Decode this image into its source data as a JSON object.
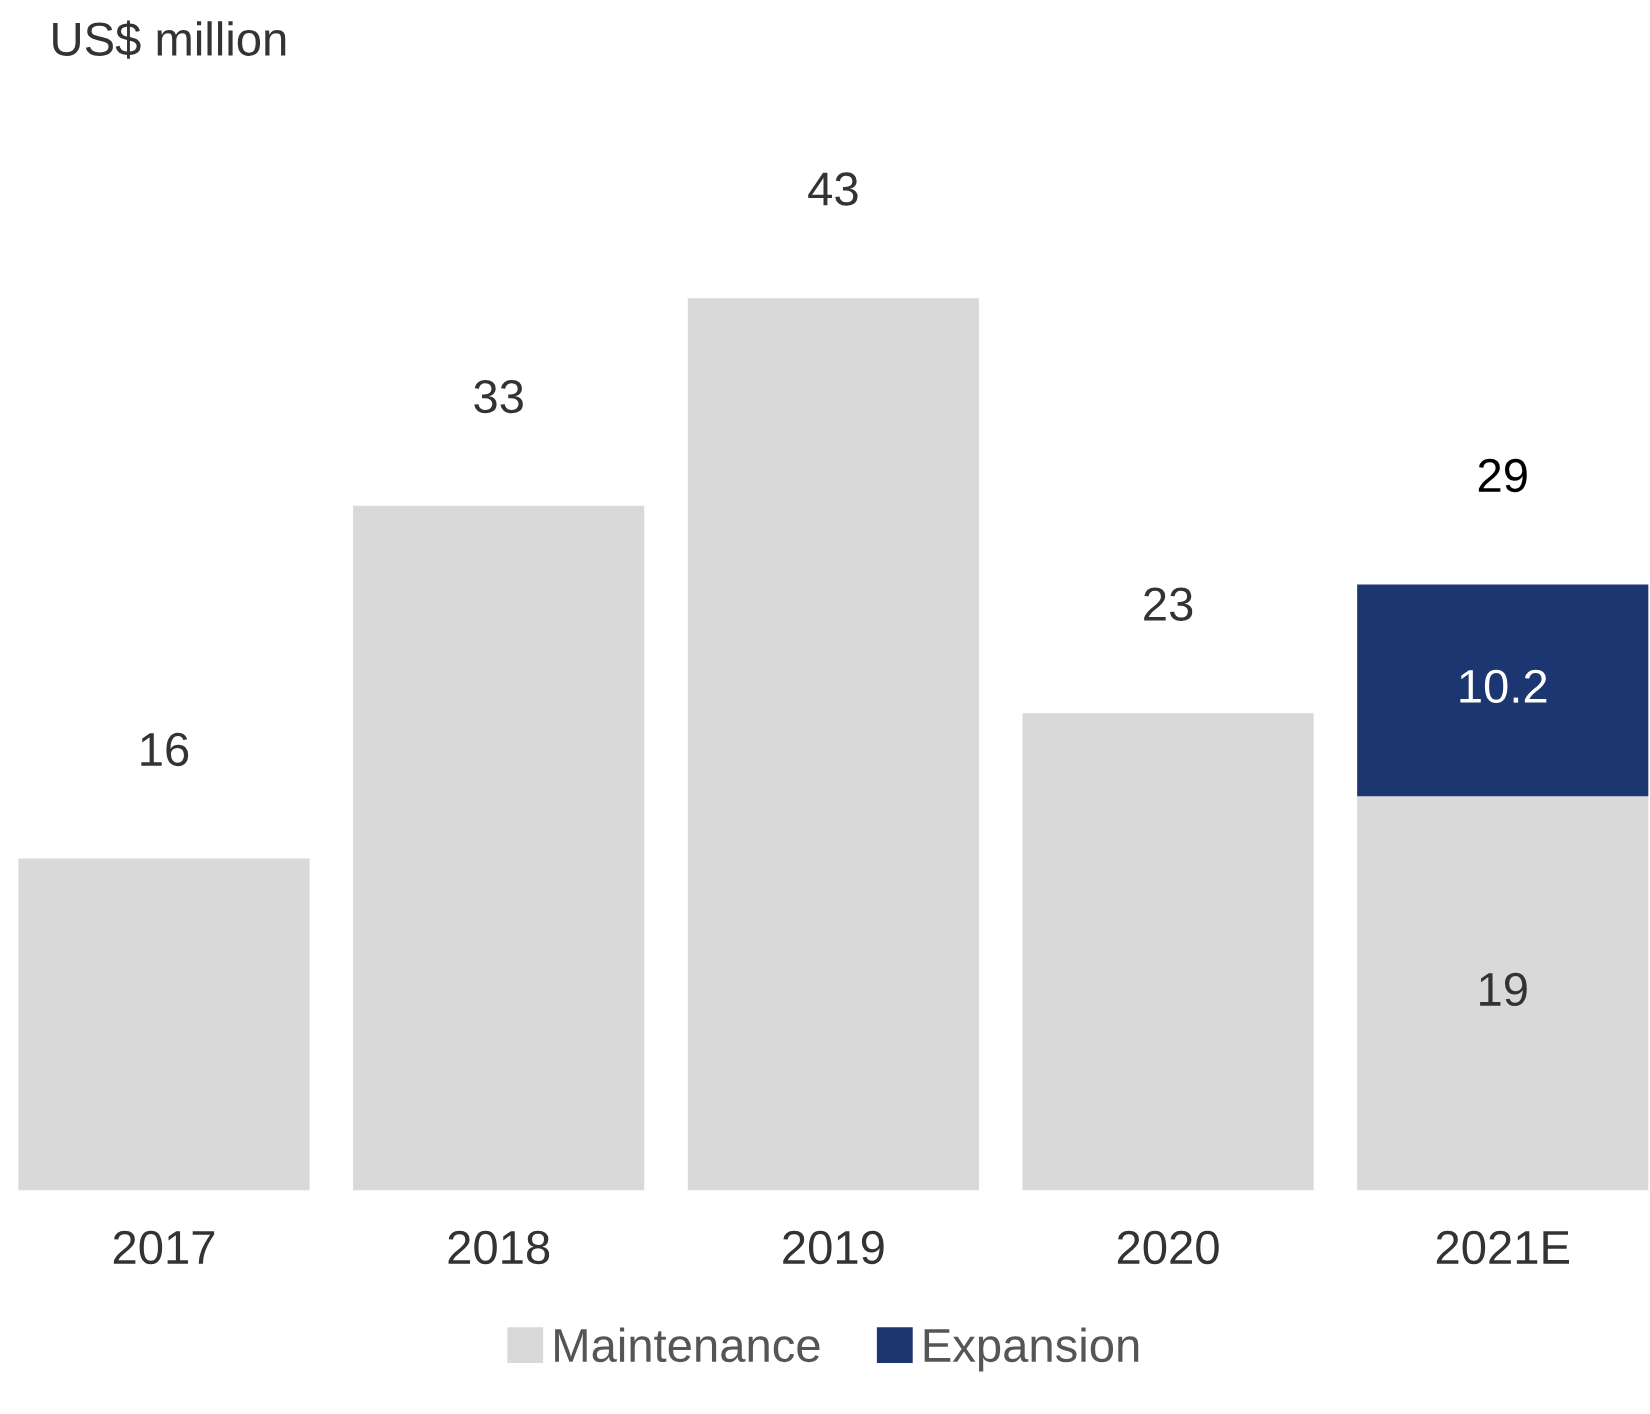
{
  "chart_data": {
    "type": "bar",
    "stacked": true,
    "annotations": [
      "US$ million"
    ],
    "categories": [
      "2017",
      "2018",
      "2019",
      "2020",
      "2021E"
    ],
    "series": [
      {
        "name": "Maintenance",
        "color": "#d9d9d9",
        "values": [
          16,
          33,
          43,
          23,
          19
        ],
        "value_labels": [
          "16",
          "33",
          "43",
          "23",
          "19"
        ]
      },
      {
        "name": "Expansion",
        "color": "#1b3670",
        "values": [
          null,
          null,
          null,
          null,
          10.2
        ],
        "value_labels": [
          null,
          null,
          null,
          null,
          "10.2"
        ]
      }
    ],
    "totals": [
      null,
      null,
      null,
      null,
      "29"
    ],
    "legend": "bottom",
    "grid": false
  }
}
